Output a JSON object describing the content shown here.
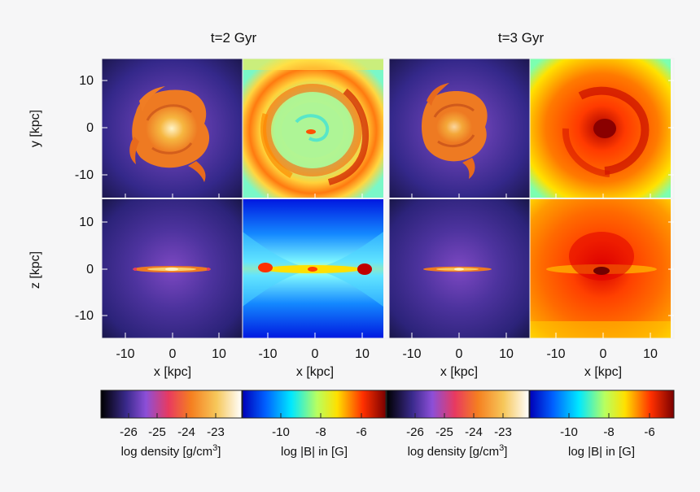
{
  "titles": [
    "t=2 Gyr",
    "t=3 Gyr"
  ],
  "y_axis_labels": [
    "y [kpc]",
    "z [kpc]"
  ],
  "x_axis_label": "x [kpc]",
  "x_tick_labels": [
    "-10",
    "0",
    "10"
  ],
  "y_tick_labels": [
    "10",
    "0",
    "-10"
  ],
  "axis_range_kpc": [
    -15,
    15
  ],
  "panels": [
    {
      "id": "t2-density-face-on",
      "time": "t=2 Gyr",
      "quantity": "density",
      "view": "x-y"
    },
    {
      "id": "t2-bfield-face-on",
      "time": "t=2 Gyr",
      "quantity": "B",
      "view": "x-y"
    },
    {
      "id": "t3-density-face-on",
      "time": "t=3 Gyr",
      "quantity": "density",
      "view": "x-y"
    },
    {
      "id": "t3-bfield-face-on",
      "time": "t=3 Gyr",
      "quantity": "B",
      "view": "x-y"
    },
    {
      "id": "t2-density-edge-on",
      "time": "t=2 Gyr",
      "quantity": "density",
      "view": "x-z"
    },
    {
      "id": "t2-bfield-edge-on",
      "time": "t=2 Gyr",
      "quantity": "B",
      "view": "x-z"
    },
    {
      "id": "t3-density-edge-on",
      "time": "t=3 Gyr",
      "quantity": "density",
      "view": "x-z"
    },
    {
      "id": "t3-bfield-edge-on",
      "time": "t=3 Gyr",
      "quantity": "B",
      "view": "x-z"
    }
  ],
  "colorbars": [
    {
      "label": "log density [g/cm",
      "label_sup": "3",
      "label_end": "]",
      "ticks": [
        "-26",
        "-25",
        "-24",
        "-23"
      ],
      "tick_values": [
        -26,
        -25,
        -24,
        -23
      ],
      "range": [
        -27.5,
        -22.5
      ],
      "palette": [
        "#000000",
        "#3a2a8c",
        "#8c4fd8",
        "#e83a60",
        "#f57f20",
        "#f6c75a",
        "#ffffff"
      ]
    },
    {
      "label": "log |B| in [G]",
      "ticks": [
        "-10",
        "-8",
        "-6"
      ],
      "tick_values": [
        -10,
        -8,
        -6
      ],
      "range": [
        -12,
        -5
      ],
      "palette": [
        "#0000b8",
        "#0060ff",
        "#00e8ff",
        "#b8ff60",
        "#ffe000",
        "#ff3000",
        "#7a0000"
      ]
    },
    {
      "label": "log density [g/cm",
      "label_sup": "3",
      "label_end": "]",
      "ticks": [
        "-26",
        "-25",
        "-24",
        "-23"
      ],
      "tick_values": [
        -26,
        -25,
        -24,
        -23
      ],
      "range": [
        -27.5,
        -22.5
      ],
      "palette": [
        "#000000",
        "#3a2a8c",
        "#8c4fd8",
        "#e83a60",
        "#f57f20",
        "#f6c75a",
        "#ffffff"
      ]
    },
    {
      "label": "log |B| in [G]",
      "ticks": [
        "-10",
        "-8",
        "-6"
      ],
      "tick_values": [
        -10,
        -8,
        -6
      ],
      "range": [
        -12,
        -5
      ],
      "palette": [
        "#0000b8",
        "#0060ff",
        "#00e8ff",
        "#b8ff60",
        "#ffe000",
        "#ff3000",
        "#7a0000"
      ]
    }
  ]
}
